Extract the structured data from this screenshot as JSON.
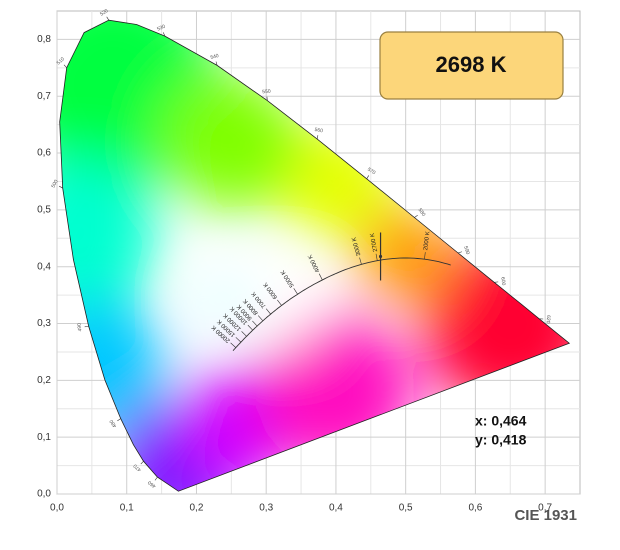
{
  "chart_data": {
    "type": "scatter",
    "title": "CIE 1931",
    "annotation": "2698 K",
    "x": [
      0.464
    ],
    "values": [
      0.418
    ],
    "x_labels": [
      "x: 0,464"
    ],
    "value_labels": [
      "y: 0,418"
    ],
    "color": "#333333",
    "xlim": [
      0,
      0.75
    ],
    "ylim": [
      0,
      0.85
    ],
    "xticks": [
      {
        "value": 0,
        "label": "0,0"
      },
      {
        "value": 0.1,
        "label": "0,1"
      },
      {
        "value": 0.2,
        "label": "0,2"
      },
      {
        "value": 0.3,
        "label": "0,3"
      },
      {
        "value": 0.4,
        "label": "0,4"
      },
      {
        "value": 0.5,
        "label": "0,5"
      },
      {
        "value": 0.6,
        "label": "0,6"
      },
      {
        "value": 0.7,
        "label": "0,7"
      }
    ],
    "yticks": [
      {
        "value": 0,
        "label": "0,0"
      },
      {
        "value": 0.1,
        "label": "0,1"
      },
      {
        "value": 0.2,
        "label": "0,2"
      },
      {
        "value": 0.3,
        "label": "0,3"
      },
      {
        "value": 0.4,
        "label": "0,4"
      },
      {
        "value": 0.5,
        "label": "0,5"
      },
      {
        "value": 0.6,
        "label": "0,6"
      },
      {
        "value": 0.7,
        "label": "0,7"
      },
      {
        "value": 0.8,
        "label": "0,8"
      }
    ],
    "grid": true,
    "cct_ticks": [
      {
        "value": 2000,
        "label": "2000 K"
      },
      {
        "value": 2700,
        "label": "2700 K"
      },
      {
        "value": 3000,
        "label": "3000 K"
      },
      {
        "value": 4000,
        "label": "4000 K"
      },
      {
        "value": 5000,
        "label": "5000 K"
      },
      {
        "value": 6000,
        "label": "6000 K"
      },
      {
        "value": 7000,
        "label": "7000 K"
      },
      {
        "value": 8000,
        "label": "8000 K"
      },
      {
        "value": 9000,
        "label": "9000 K"
      },
      {
        "value": 10000,
        "label": "10000 K"
      },
      {
        "value": 12000,
        "label": "12000 K"
      },
      {
        "value": 15000,
        "label": "15000 K"
      },
      {
        "value": 20000,
        "label": "20000 K"
      }
    ],
    "wavelength_ticks": [
      460,
      470,
      480,
      490,
      500,
      510,
      520,
      530,
      540,
      550,
      560,
      570,
      580,
      590,
      600,
      620
    ]
  }
}
